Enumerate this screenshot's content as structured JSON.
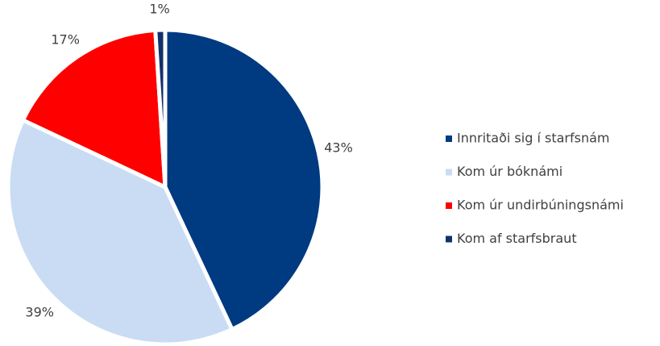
{
  "chart_data": {
    "type": "pie",
    "categories": [
      "Innritaði sig í starfsnám",
      "Kom úr bóknámi",
      "Kom úr undirbúningsnámi",
      "Kom af starfsbraut"
    ],
    "values": [
      43,
      39,
      17,
      1
    ],
    "value_labels": [
      "43%",
      "39%",
      "17%",
      "1%"
    ],
    "colors": [
      "#003a80",
      "#c9dcf3",
      "#ff0000",
      "#13306b"
    ],
    "legend": "right"
  }
}
